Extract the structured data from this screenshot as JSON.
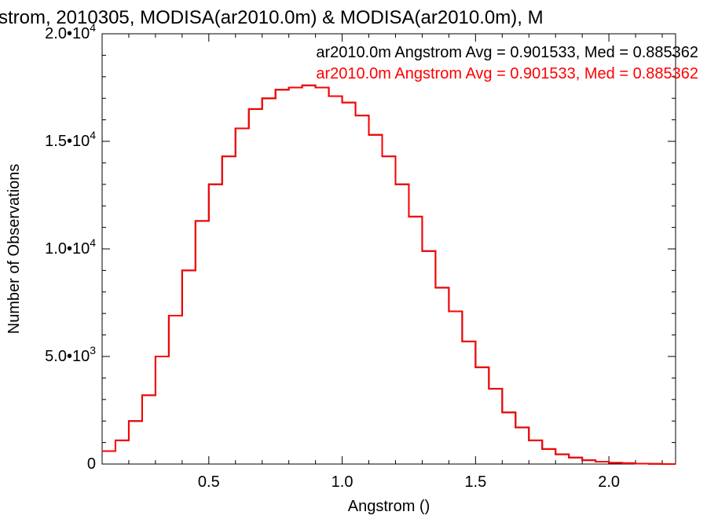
{
  "chart_data": {
    "type": "histogram",
    "title": "strom, 2010305, MODISA(ar2010.0m) & MODISA(ar2010.0m), M",
    "xlabel": "Angstrom ()",
    "ylabel": "Number of Observations",
    "xlim": [
      0.1,
      2.25
    ],
    "ylim": [
      0,
      20000
    ],
    "x_ticks": [
      {
        "value": 0.5,
        "label": "0.5"
      },
      {
        "value": 1.0,
        "label": "1.0"
      },
      {
        "value": 1.5,
        "label": "1.5"
      },
      {
        "value": 2.0,
        "label": "2.0"
      }
    ],
    "y_ticks": [
      {
        "value": 0,
        "label": "0",
        "mantissa": "0",
        "exponent": ""
      },
      {
        "value": 5000,
        "label": "5.0•10^3",
        "mantissa": "5.0•10",
        "exponent": "3"
      },
      {
        "value": 10000,
        "label": "1.0•10^4",
        "mantissa": "1.0•10",
        "exponent": "4"
      },
      {
        "value": 15000,
        "label": "1.5•10^4",
        "mantissa": "1.5•10",
        "exponent": "4"
      },
      {
        "value": 20000,
        "label": "2.0•10^4",
        "mantissa": "2.0•10",
        "exponent": "4"
      }
    ],
    "grid": false,
    "legend_position": "top-right",
    "series": [
      {
        "name": "ar2010.0m Angstrom Avg = 0.901533, Med = 0.885362",
        "color": "#000000",
        "x": [
          0.1,
          0.15,
          0.2,
          0.25,
          0.3,
          0.35,
          0.4,
          0.45,
          0.5,
          0.55,
          0.6,
          0.65,
          0.7,
          0.75,
          0.8,
          0.85,
          0.9,
          0.95,
          1.0,
          1.05,
          1.1,
          1.15,
          1.2,
          1.25,
          1.3,
          1.35,
          1.4,
          1.45,
          1.5,
          1.55,
          1.6,
          1.65,
          1.7,
          1.75,
          1.8,
          1.85,
          1.9,
          1.95,
          2.0,
          2.05,
          2.1,
          2.15,
          2.2,
          2.25
        ],
        "y": [
          600,
          1100,
          2000,
          3200,
          5000,
          6900,
          9000,
          11300,
          13000,
          14300,
          15600,
          16500,
          17000,
          17400,
          17500,
          17600,
          17500,
          17100,
          16800,
          16200,
          15300,
          14300,
          13000,
          11500,
          9900,
          8200,
          7100,
          5700,
          4500,
          3500,
          2400,
          1700,
          1100,
          700,
          450,
          300,
          180,
          110,
          60,
          40,
          20,
          10,
          0,
          0
        ]
      },
      {
        "name": "ar2010.0m Angstrom Avg = 0.901533, Med = 0.885362",
        "color": "#ff0000",
        "x": [
          0.1,
          0.15,
          0.2,
          0.25,
          0.3,
          0.35,
          0.4,
          0.45,
          0.5,
          0.55,
          0.6,
          0.65,
          0.7,
          0.75,
          0.8,
          0.85,
          0.9,
          0.95,
          1.0,
          1.05,
          1.1,
          1.15,
          1.2,
          1.25,
          1.3,
          1.35,
          1.4,
          1.45,
          1.5,
          1.55,
          1.6,
          1.65,
          1.7,
          1.75,
          1.8,
          1.85,
          1.9,
          1.95,
          2.0,
          2.05,
          2.1,
          2.15,
          2.2,
          2.25
        ],
        "y": [
          600,
          1100,
          2000,
          3200,
          5000,
          6900,
          9000,
          11300,
          13000,
          14300,
          15600,
          16500,
          17000,
          17400,
          17500,
          17600,
          17500,
          17100,
          16800,
          16200,
          15300,
          14300,
          13000,
          11500,
          9900,
          8200,
          7100,
          5700,
          4500,
          3500,
          2400,
          1700,
          1100,
          700,
          450,
          300,
          180,
          110,
          60,
          40,
          20,
          10,
          0,
          0
        ]
      }
    ]
  }
}
